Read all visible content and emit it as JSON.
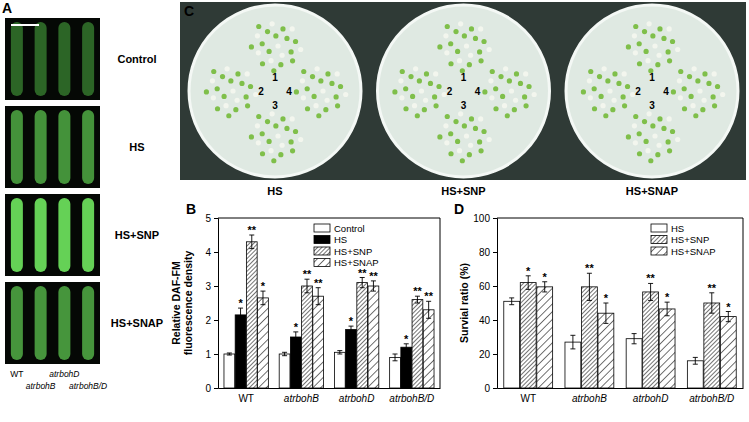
{
  "panels": {
    "A": {
      "label": "A",
      "rows": [
        "Control",
        "HS",
        "HS+SNP",
        "HS+SNAP"
      ],
      "genotypes": [
        "WT",
        "atrbohB",
        "atrbohD",
        "atrbohB/D"
      ]
    },
    "C": {
      "label": "C",
      "plates": [
        "HS",
        "HS+SNP",
        "HS+SNAP"
      ],
      "positions": [
        1,
        2,
        3,
        4
      ]
    }
  },
  "chart_data": [
    {
      "type": "bar",
      "title": "B",
      "ylabel": "Relative DAF-FM fluorescence density",
      "categories": [
        "WT",
        "atrbohB",
        "atrbohD",
        "atrbohB/D"
      ],
      "ylim": [
        0,
        5
      ],
      "yticks": [
        0,
        1,
        2,
        3,
        4,
        5
      ],
      "legend": "upper center",
      "series": [
        {
          "name": "Control",
          "color": "#ffffff",
          "values": [
            1.0,
            1.0,
            1.05,
            0.9
          ],
          "errors": [
            0.03,
            0.05,
            0.05,
            0.1
          ],
          "significance": [
            null,
            null,
            null,
            null
          ]
        },
        {
          "name": "HS",
          "color": "#000000",
          "values": [
            2.15,
            1.5,
            1.72,
            1.2
          ],
          "errors": [
            0.2,
            0.15,
            0.1,
            0.1
          ],
          "significance": [
            "*",
            "*",
            "*",
            "*"
          ]
        },
        {
          "name": "HS+SNP",
          "color": "#ffffff",
          "values": [
            4.3,
            3.0,
            3.1,
            2.6
          ],
          "errors": [
            0.2,
            0.2,
            0.15,
            0.1
          ],
          "significance": [
            "**",
            "**",
            "**",
            "**"
          ]
        },
        {
          "name": "HS+SNAP",
          "color": "#ffffff",
          "values": [
            2.65,
            2.7,
            3.0,
            2.3
          ],
          "errors": [
            0.2,
            0.25,
            0.15,
            0.25
          ],
          "significance": [
            "*",
            "**",
            "**",
            "**"
          ]
        }
      ]
    },
    {
      "type": "bar",
      "title": "D",
      "ylabel": "Survial ratio (%)",
      "categories": [
        "WT",
        "atrbohB",
        "atrbohD",
        "atrbohB/D"
      ],
      "ylim": [
        0,
        100
      ],
      "yticks": [
        0,
        20,
        40,
        60,
        80,
        100
      ],
      "legend": "upper right",
      "series": [
        {
          "name": "HS",
          "color": "#ffffff",
          "values": [
            51,
            27,
            29,
            16
          ],
          "errors": [
            2,
            4,
            3,
            2
          ],
          "significance": [
            null,
            null,
            null,
            null
          ]
        },
        {
          "name": "HS+SNP",
          "color": "#ffffff",
          "values": [
            62,
            59.5,
            56.5,
            50
          ],
          "errors": [
            4,
            8,
            5,
            6
          ],
          "significance": [
            "*",
            "**",
            "**",
            "**"
          ]
        },
        {
          "name": "HS+SNAP",
          "color": "#ffffff",
          "values": [
            59.5,
            44,
            46.5,
            42
          ],
          "errors": [
            3,
            6,
            4,
            3
          ],
          "significance": [
            "*",
            "*",
            "*",
            "*"
          ]
        }
      ]
    }
  ]
}
